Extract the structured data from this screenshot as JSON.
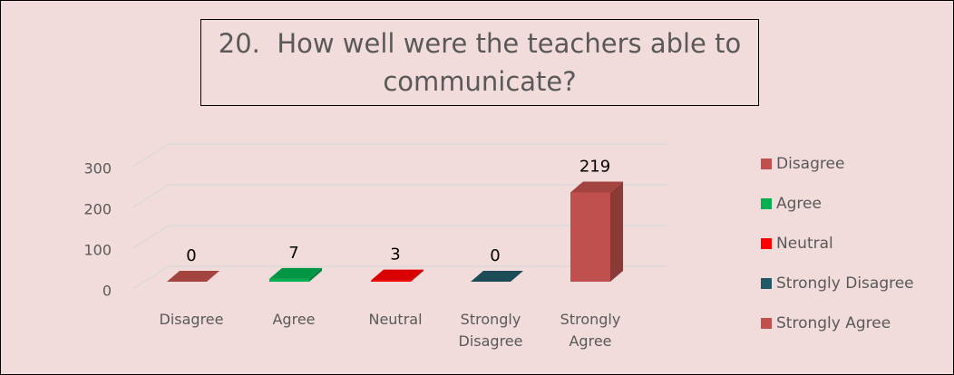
{
  "chart_data": {
    "type": "bar3d",
    "title": "20.  How well were the teachers able to communicate?",
    "categories": [
      "Disagree",
      "Agree",
      "Neutral",
      "Strongly Disagree",
      "Strongly Agree"
    ],
    "values": [
      0,
      7,
      3,
      0,
      219
    ],
    "colors": [
      "#c0504d",
      "#00b050",
      "#ff0000",
      "#215968",
      "#c0504d"
    ],
    "ylim": [
      0,
      300
    ],
    "yticks": [
      0,
      100,
      200,
      300
    ],
    "grid": true,
    "legend": "right"
  }
}
